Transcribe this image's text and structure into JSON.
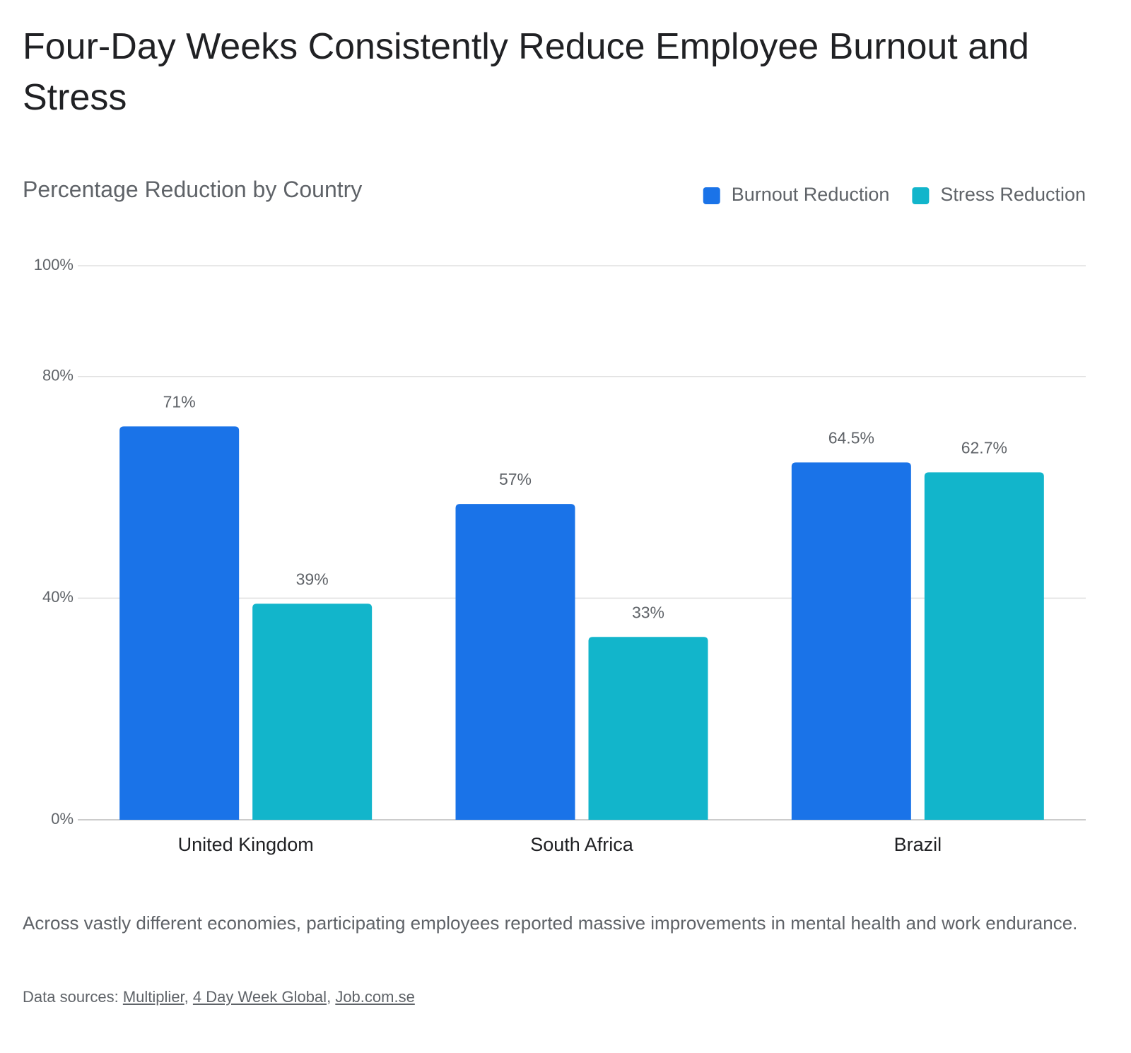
{
  "chart_data": {
    "type": "bar",
    "title": "Four-Day Weeks Consistently Reduce Employee Burnout and Stress",
    "subtitle": "Percentage Reduction by Country",
    "categories": [
      "United Kingdom",
      "South Africa",
      "Brazil"
    ],
    "series": [
      {
        "name": "Burnout Reduction",
        "color": "#1a73e8",
        "values": [
          71,
          57,
          64.5
        ],
        "value_labels": [
          "71%",
          "57%",
          "64.5%"
        ]
      },
      {
        "name": "Stress Reduction",
        "color": "#12b5cb",
        "values": [
          39,
          33,
          62.7
        ],
        "value_labels": [
          "39%",
          "33%",
          "62.7%"
        ]
      }
    ],
    "ylim": [
      0,
      100
    ],
    "yticks": [
      {
        "value": 0,
        "label": "0%"
      },
      {
        "value": 40,
        "label": "40%"
      },
      {
        "value": 80,
        "label": "80%"
      },
      {
        "value": 100,
        "label": "100%"
      }
    ],
    "grid": true,
    "legend": "top-right"
  },
  "footer": {
    "description": "Across vastly different economies, participating employees reported massive improvements in mental health and work endurance.",
    "sources_label": "Data sources:",
    "separator": ",",
    "sources": [
      "Multiplier",
      "4 Day Week Global",
      "Job.com.se"
    ]
  }
}
